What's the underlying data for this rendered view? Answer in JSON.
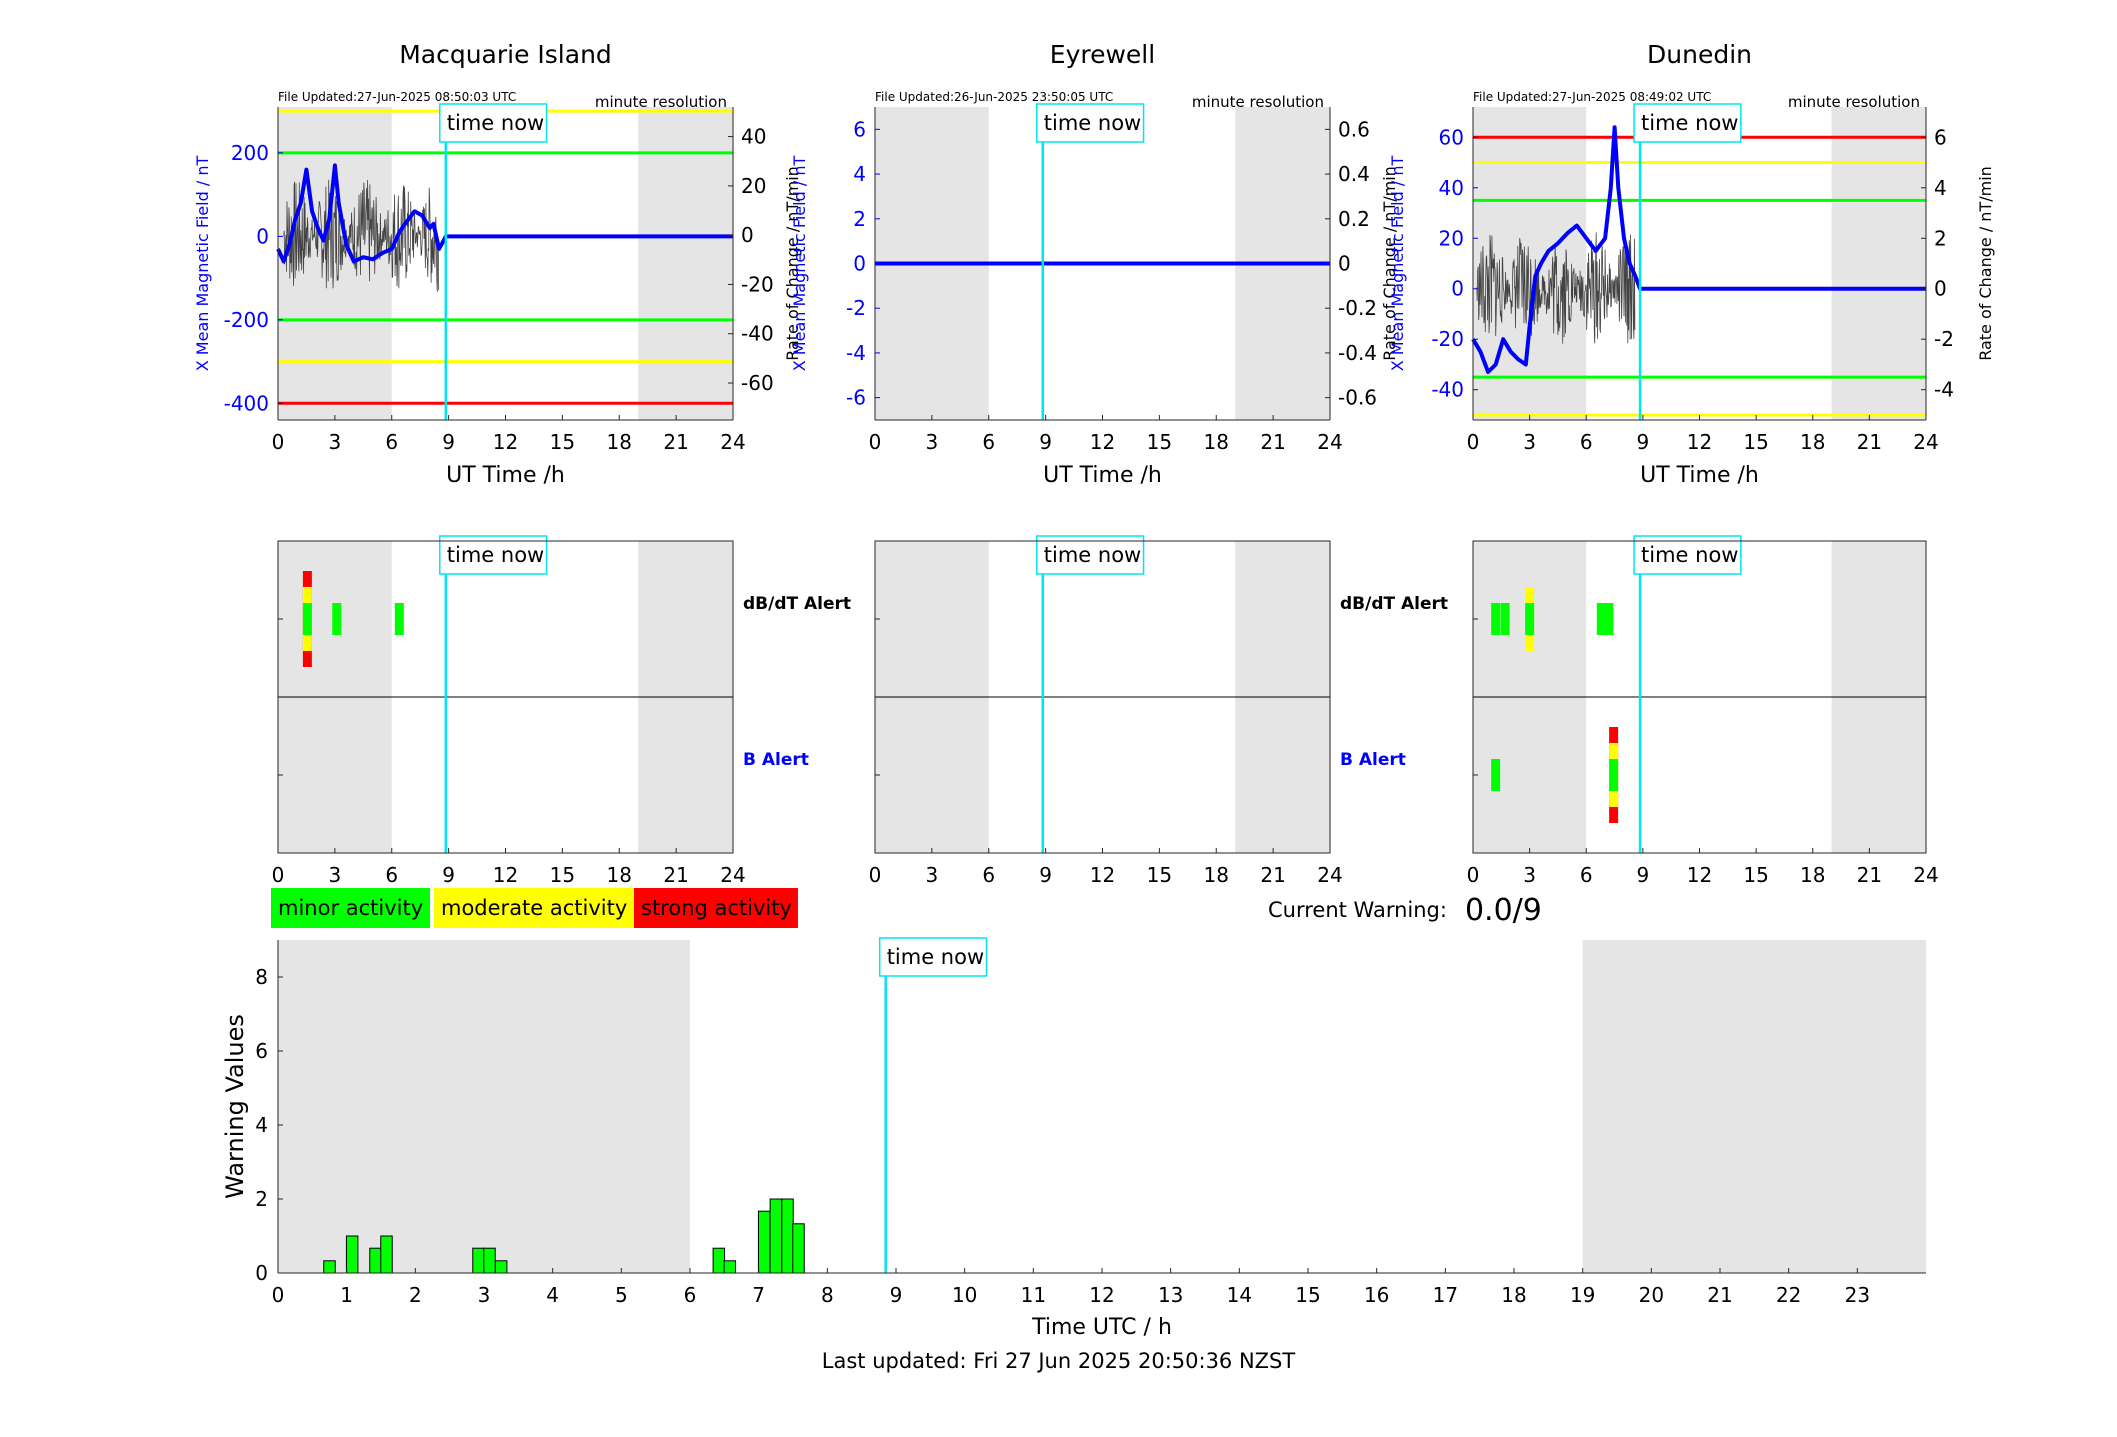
{
  "colors": {
    "night": "#e5e5e5",
    "time_now": "#00e5ee",
    "minor": "#00ff00",
    "moderate": "#ffff00",
    "strong": "#ff0000",
    "b_axis": "#0000ff",
    "rate_trace": "#444444"
  },
  "time_now_label": "time now",
  "time_now_hour": 8.85,
  "night_periods": [
    [
      0,
      6
    ],
    [
      19,
      24
    ]
  ],
  "hour_ticks": [
    "0",
    "3",
    "6",
    "9",
    "12",
    "15",
    "18",
    "21",
    "24"
  ],
  "ut_xlabel": "UT Time /h",
  "resolution_label": "minute resolution",
  "left_ylabel": "X Mean Magnetic Field / nT",
  "right_ylabel": "Rate of Change / nT/min",
  "alert_labels": {
    "dbdt": "dB/dT Alert",
    "b": "B Alert"
  },
  "stations": [
    {
      "name": "Macquarie Island",
      "file_updated": "File Updated:27-Jun-2025 08:50:03 UTC",
      "left_ylim": [
        -440,
        310
      ],
      "left_ticks": [
        "200",
        "0",
        "-200",
        "-400"
      ],
      "right_ylim": [
        -75,
        52
      ],
      "right_ticks": [
        "40",
        "20",
        "0",
        "-20",
        "-40",
        "-60"
      ],
      "thresholds": [
        {
          "value": 300,
          "color": "#ffff00"
        },
        {
          "value": 200,
          "color": "#00ff00"
        },
        {
          "value": -200,
          "color": "#00ff00"
        },
        {
          "value": -300,
          "color": "#ffff00"
        },
        {
          "value": -400,
          "color": "#ff0000"
        }
      ],
      "b_trace": [
        [
          0,
          -30
        ],
        [
          0.3,
          -60
        ],
        [
          0.6,
          -20
        ],
        [
          0.9,
          40
        ],
        [
          1.2,
          80
        ],
        [
          1.5,
          160
        ],
        [
          1.8,
          60
        ],
        [
          2.1,
          20
        ],
        [
          2.4,
          -10
        ],
        [
          2.7,
          40
        ],
        [
          3.0,
          170
        ],
        [
          3.2,
          80
        ],
        [
          3.6,
          -20
        ],
        [
          4.0,
          -60
        ],
        [
          4.5,
          -50
        ],
        [
          5.0,
          -55
        ],
        [
          5.5,
          -40
        ],
        [
          6.0,
          -30
        ],
        [
          6.4,
          10
        ],
        [
          6.7,
          30
        ],
        [
          7.2,
          60
        ],
        [
          7.6,
          50
        ],
        [
          8.0,
          20
        ],
        [
          8.2,
          30
        ],
        [
          8.5,
          -30
        ],
        [
          8.85,
          0
        ],
        [
          24,
          0
        ]
      ],
      "rate_trace_extent": [
        0.3,
        8.5
      ],
      "dbdt_alerts": [
        {
          "hour": 1.55,
          "level": "strong"
        },
        {
          "hour": 3.1,
          "level": "minor"
        },
        {
          "hour": 6.4,
          "level": "minor"
        }
      ],
      "b_alerts": []
    },
    {
      "name": "Eyrewell",
      "file_updated": "File Updated:26-Jun-2025 23:50:05 UTC",
      "left_ylim": [
        -7,
        7
      ],
      "left_ticks": [
        "6",
        "4",
        "2",
        "0",
        "-2",
        "-4",
        "-6"
      ],
      "right_ylim": [
        -0.7,
        0.7
      ],
      "right_ticks": [
        "0.6",
        "0.4",
        "0.2",
        "0",
        "-0.2",
        "-0.4",
        "-0.6"
      ],
      "thresholds": [],
      "b_trace": [
        [
          0,
          0
        ],
        [
          24,
          0
        ]
      ],
      "rate_trace_extent": [
        0,
        0
      ],
      "dbdt_alerts": [],
      "b_alerts": []
    },
    {
      "name": "Dunedin",
      "file_updated": "File Updated:27-Jun-2025 08:49:02 UTC",
      "left_ylim": [
        -52,
        72
      ],
      "left_ticks": [
        "60",
        "40",
        "20",
        "0",
        "-20",
        "-40"
      ],
      "right_ylim": [
        -5.2,
        7.2
      ],
      "right_ticks": [
        "6",
        "4",
        "2",
        "0",
        "-2",
        "-4"
      ],
      "thresholds": [
        {
          "value": 60,
          "color": "#ff0000"
        },
        {
          "value": 50,
          "color": "#ffff00"
        },
        {
          "value": 35,
          "color": "#00ff00"
        },
        {
          "value": -35,
          "color": "#00ff00"
        },
        {
          "value": -50,
          "color": "#ffff00"
        }
      ],
      "b_trace": [
        [
          0,
          -20
        ],
        [
          0.4,
          -25
        ],
        [
          0.8,
          -33
        ],
        [
          1.2,
          -30
        ],
        [
          1.6,
          -20
        ],
        [
          2.0,
          -25
        ],
        [
          2.4,
          -28
        ],
        [
          2.8,
          -30
        ],
        [
          3.0,
          -15
        ],
        [
          3.3,
          5
        ],
        [
          3.6,
          10
        ],
        [
          4.0,
          15
        ],
        [
          4.5,
          18
        ],
        [
          5.0,
          22
        ],
        [
          5.5,
          25
        ],
        [
          6.0,
          20
        ],
        [
          6.5,
          15
        ],
        [
          7.0,
          20
        ],
        [
          7.3,
          40
        ],
        [
          7.5,
          64
        ],
        [
          7.7,
          40
        ],
        [
          8.0,
          20
        ],
        [
          8.3,
          10
        ],
        [
          8.6,
          5
        ],
        [
          8.85,
          0
        ],
        [
          24,
          0
        ]
      ],
      "rate_trace_extent": [
        0.2,
        8.6
      ],
      "dbdt_alerts": [
        {
          "hour": 1.2,
          "level": "minor"
        },
        {
          "hour": 1.7,
          "level": "minor"
        },
        {
          "hour": 3.0,
          "level": "moderate"
        },
        {
          "hour": 6.8,
          "level": "minor"
        },
        {
          "hour": 7.2,
          "level": "minor"
        }
      ],
      "b_alerts": [
        {
          "hour": 1.2,
          "level": "minor"
        },
        {
          "hour": 7.45,
          "level": "strong"
        }
      ]
    }
  ],
  "legend": [
    {
      "label": "minor activity",
      "color": "#00ff00"
    },
    {
      "label": "moderate activity",
      "color": "#ffff00"
    },
    {
      "label": "strong activity",
      "color": "#ff0000"
    }
  ],
  "current_warning_label": "Current Warning:",
  "current_warning_value": "0.0/9",
  "last_updated": "Last updated: Fri 27 Jun 2025 20:50:36 NZST",
  "chart_data": {
    "type": "bar",
    "xlabel": "Time UTC / h",
    "ylabel": "Warning Values",
    "xlim": [
      0,
      24
    ],
    "ylim": [
      0,
      9
    ],
    "x_ticks": [
      "0",
      "1",
      "2",
      "3",
      "4",
      "5",
      "6",
      "7",
      "8",
      "9",
      "10",
      "11",
      "12",
      "13",
      "14",
      "15",
      "16",
      "17",
      "18",
      "19",
      "20",
      "21",
      "22",
      "23"
    ],
    "y_ticks": [
      "0",
      "2",
      "4",
      "6",
      "8"
    ],
    "bar_width": 0.167,
    "bars": [
      {
        "x": 0.75,
        "value": 0.33
      },
      {
        "x": 1.08,
        "value": 1.0
      },
      {
        "x": 1.42,
        "value": 0.67
      },
      {
        "x": 1.58,
        "value": 1.0
      },
      {
        "x": 2.92,
        "value": 0.67
      },
      {
        "x": 3.08,
        "value": 0.67
      },
      {
        "x": 3.25,
        "value": 0.33
      },
      {
        "x": 6.42,
        "value": 0.67
      },
      {
        "x": 6.58,
        "value": 0.33
      },
      {
        "x": 7.08,
        "value": 1.67
      },
      {
        "x": 7.25,
        "value": 2.0
      },
      {
        "x": 7.42,
        "value": 2.0
      },
      {
        "x": 7.58,
        "value": 1.33
      }
    ]
  }
}
